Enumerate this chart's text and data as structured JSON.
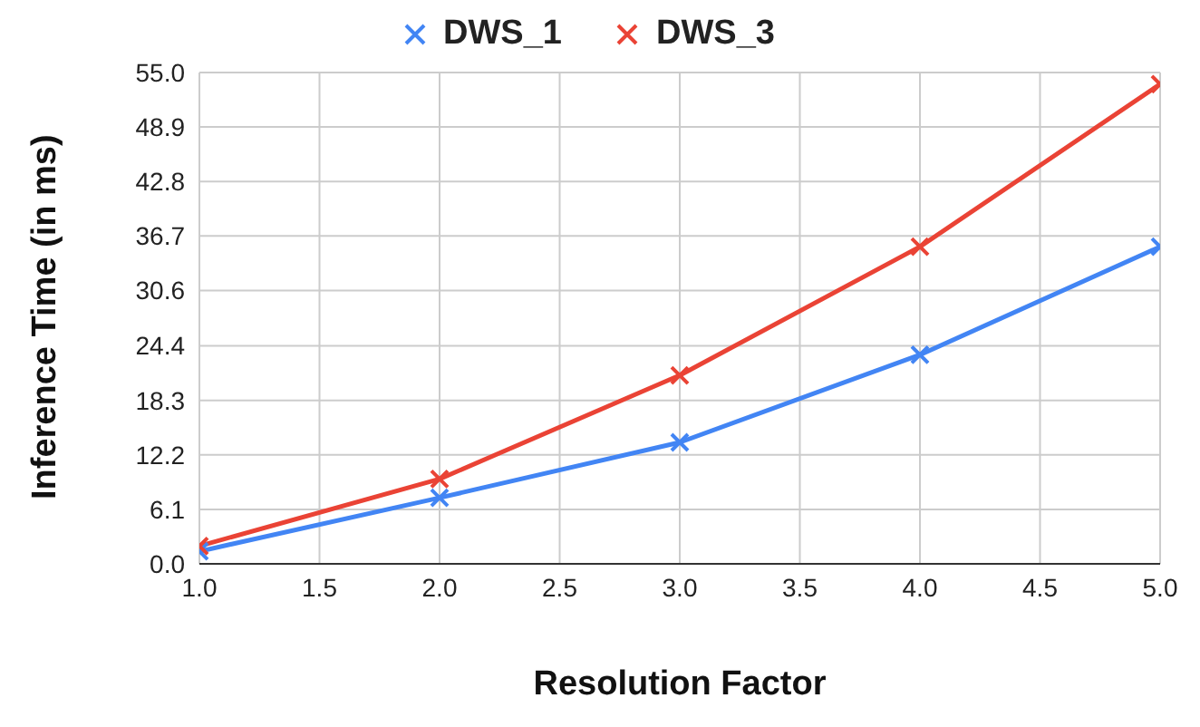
{
  "chart_data": {
    "type": "line",
    "xlabel": "Resolution Factor",
    "ylabel": "Inference Time (in ms)",
    "x": [
      1,
      2,
      3,
      4,
      5
    ],
    "series": [
      {
        "name": "DWS_1",
        "color": "#4285f4",
        "values": [
          1.4,
          7.4,
          13.6,
          23.4,
          35.5
        ]
      },
      {
        "name": "DWS_3",
        "color": "#ea4335",
        "values": [
          2.0,
          9.5,
          21.1,
          35.5,
          53.7
        ]
      }
    ],
    "xlim": [
      1,
      5
    ],
    "xticks": [
      {
        "value": 1,
        "label": "1.0"
      },
      1.5,
      {
        "value": 2,
        "label": "2.0"
      },
      2.5,
      {
        "value": 3,
        "label": "3.0"
      },
      3.5,
      {
        "value": 4,
        "label": "4.0"
      },
      4.5,
      {
        "value": 5,
        "label": "5.0"
      }
    ],
    "ylim": [
      0,
      55
    ],
    "yticks": [
      {
        "value": 0,
        "label": "0.0"
      },
      6.1,
      12.2,
      18.3,
      24.4,
      30.6,
      36.7,
      42.8,
      48.9,
      {
        "value": 55,
        "label": "55.0"
      }
    ],
    "grid": true,
    "legend": "top",
    "marker": "cross",
    "line_style": "solid"
  }
}
